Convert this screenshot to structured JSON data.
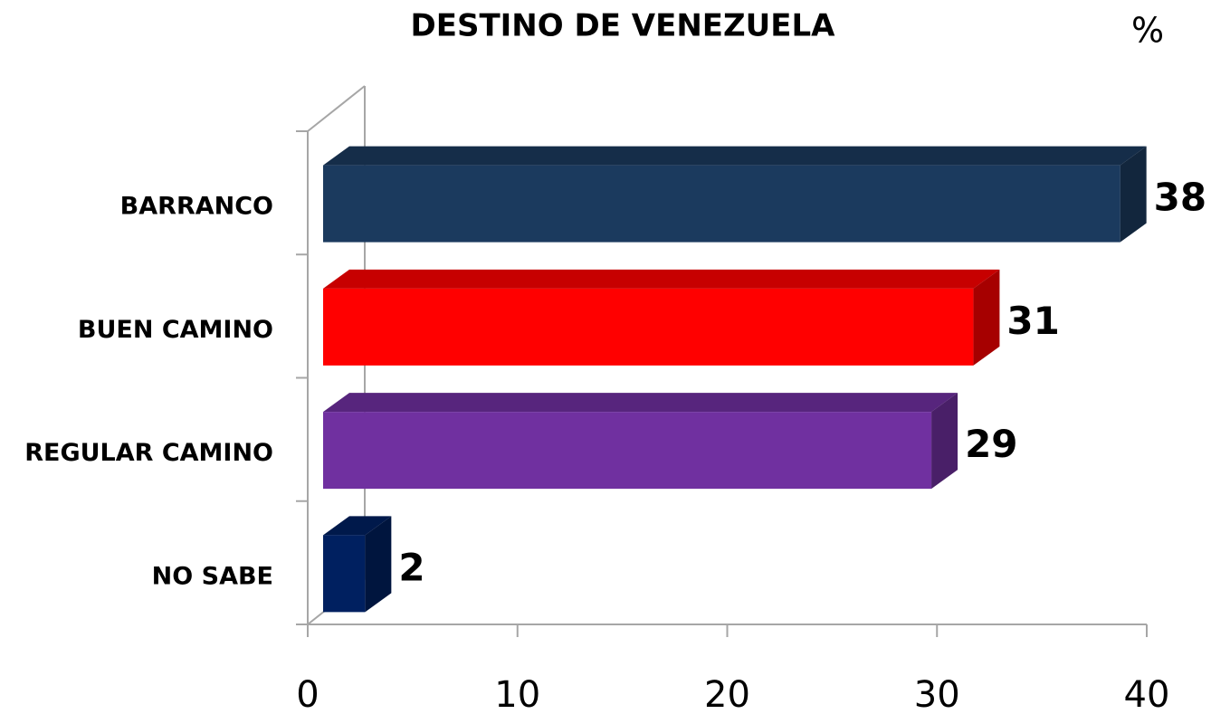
{
  "chart_data": {
    "type": "bar3d_horizontal",
    "title": "DESTINO DE VENEZUELA",
    "unit_label": "%",
    "categories": [
      "BARRANCO",
      "BUEN CAMINO",
      "REGULAR CAMINO",
      "NO SABE"
    ],
    "values": [
      38,
      31,
      29,
      2
    ],
    "colors": [
      "#1b3a5e",
      "#ff0000",
      "#7030a0",
      "#002060"
    ],
    "xlim": [
      0,
      40
    ],
    "xticks": [
      0,
      10,
      20,
      30,
      40
    ]
  }
}
